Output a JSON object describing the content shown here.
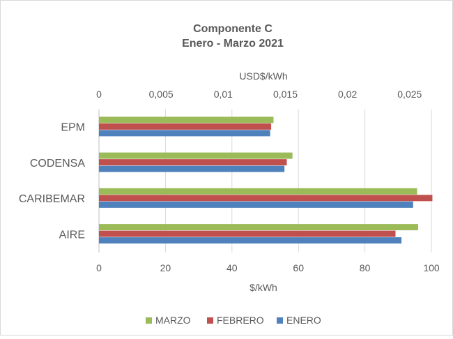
{
  "chart_data": {
    "type": "bar",
    "orientation": "horizontal",
    "title": "Componente C",
    "subtitle": "Enero - Marzo 2021",
    "categories": [
      "EPM",
      "CODENSA",
      "CARIBEMAR",
      "AIRE"
    ],
    "series": [
      {
        "name": "MARZO",
        "color": "#9BBB59",
        "values": [
          52.5,
          58.2,
          95.7,
          96.0
        ]
      },
      {
        "name": "FEBRERO",
        "color": "#C0504D",
        "values": [
          51.8,
          56.5,
          100.3,
          89.2
        ]
      },
      {
        "name": "ENERO",
        "color": "#4F81BD",
        "values": [
          51.5,
          55.8,
          94.5,
          91.0
        ]
      }
    ],
    "xlabel": "$/kWh",
    "xlim": [
      0,
      100
    ],
    "x_ticks": [
      "0",
      "20",
      "40",
      "60",
      "80",
      "100"
    ],
    "secondary_xlabel": "USD$/kWh",
    "secondary_xlim": [
      0,
      0.025
    ],
    "secondary_x_ticks": [
      "0",
      "0,005",
      "0,01",
      "0,015",
      "0,02",
      "0,025"
    ],
    "legend_position": "bottom",
    "grid": true
  }
}
